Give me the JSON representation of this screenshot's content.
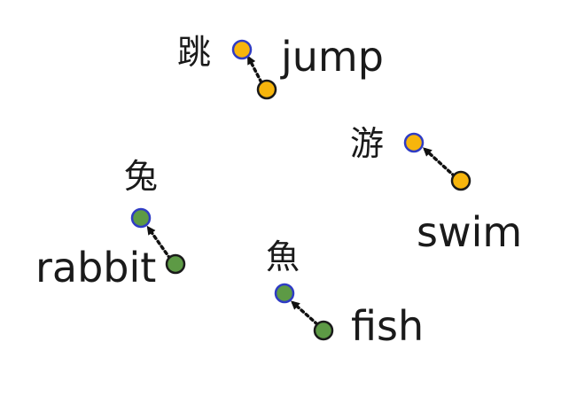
{
  "pairs": [
    {
      "key": "jump",
      "english": "jump",
      "chinese": "跳",
      "group_color": "#f7b50c"
    },
    {
      "key": "swim",
      "english": "swim",
      "chinese": "游",
      "group_color": "#f7b50c"
    },
    {
      "key": "rabbit",
      "english": "rabbit",
      "chinese": "兔",
      "group_color": "#5d9a45"
    },
    {
      "key": "fish",
      "english": "fish",
      "chinese": "魚",
      "group_color": "#5d9a45"
    }
  ],
  "colors": {
    "verb_group": "#f7b50c",
    "noun_group": "#5d9a45",
    "target_outline": "#2f3cc4",
    "arrow": "#111111"
  }
}
